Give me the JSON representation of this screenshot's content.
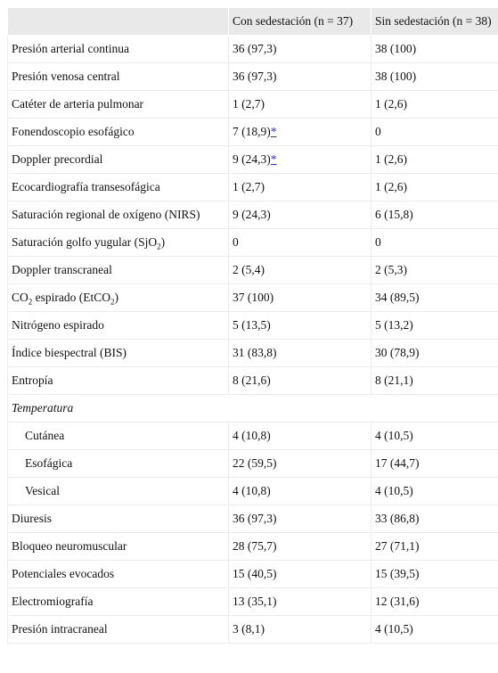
{
  "table": {
    "columns": [
      "Con sedestación (n = 37)",
      "Sin sedestación (n = 38)"
    ],
    "rows": [
      {
        "label": "Presión arterial continua",
        "values": [
          "36 (97,3)",
          "38 (100)"
        ]
      },
      {
        "label": "Presión venosa central",
        "values": [
          "36 (97,3)",
          "38 (100)"
        ]
      },
      {
        "label": "Catéter de arteria pulmonar",
        "values": [
          "1 (2,7)",
          "1 (2,6)"
        ]
      },
      {
        "label": "Fonendoscopio esofágico",
        "values": [
          "7 (18,9)",
          "0"
        ],
        "note": "*"
      },
      {
        "label": "Doppler precordial",
        "values": [
          "9 (24,3)",
          "1 (2,6)"
        ],
        "note": "*"
      },
      {
        "label": "Ecocardiografía transesofágica",
        "values": [
          "1 (2,7)",
          "1 (2,6)"
        ]
      },
      {
        "label": "Saturación regional de oxígeno (NIRS)",
        "values": [
          "9 (24,3)",
          "6 (15,8)"
        ]
      },
      {
        "parts": [
          {
            "text": "Saturación golfo yugular (SjO"
          },
          {
            "sub": "2"
          },
          {
            "text": ")"
          }
        ],
        "values": [
          "0",
          "0"
        ]
      },
      {
        "label": "Doppler transcraneal",
        "values": [
          "2 (5,4)",
          "2 (5,3)"
        ]
      },
      {
        "parts": [
          {
            "text": "CO"
          },
          {
            "sub": "2"
          },
          {
            "text": " espirado (EtCO"
          },
          {
            "sub": "2"
          },
          {
            "text": ")"
          }
        ],
        "values": [
          "37 (100)",
          "34 (89,5)"
        ]
      },
      {
        "label": "Nitrógeno espirado",
        "values": [
          "5 (13,5)",
          "5 (13,2)"
        ]
      },
      {
        "label": "Índice biespectral (BIS)",
        "values": [
          "31 (83,8)",
          "30 (78,9)"
        ]
      },
      {
        "label": "Entropía",
        "values": [
          "8 (21,6)",
          "8 (21,1)"
        ]
      },
      {
        "group": "Temperatura"
      },
      {
        "label": "Cutánea",
        "indent": true,
        "values": [
          "4 (10,8)",
          "4 (10,5)"
        ]
      },
      {
        "label": "Esofágica",
        "indent": true,
        "values": [
          "22 (59,5)",
          "17 (44,7)"
        ]
      },
      {
        "label": "Vesical",
        "indent": true,
        "values": [
          "4 (10,8)",
          "4 (10,5)"
        ]
      },
      {
        "label": "Diuresis",
        "values": [
          "36 (97,3)",
          "33 (86,8)"
        ]
      },
      {
        "label": "Bloqueo neuromuscular",
        "values": [
          "28 (75,7)",
          "27 (71,1)"
        ]
      },
      {
        "label": "Potenciales evocados",
        "values": [
          "15 (40,5)",
          "15 (39,5)"
        ]
      },
      {
        "label": "Electromiografía",
        "values": [
          "13 (35,1)",
          "12 (31,6)"
        ]
      },
      {
        "label": "Presión intracraneal",
        "values": [
          "3 (8,1)",
          "4 (10,5)"
        ]
      }
    ]
  }
}
